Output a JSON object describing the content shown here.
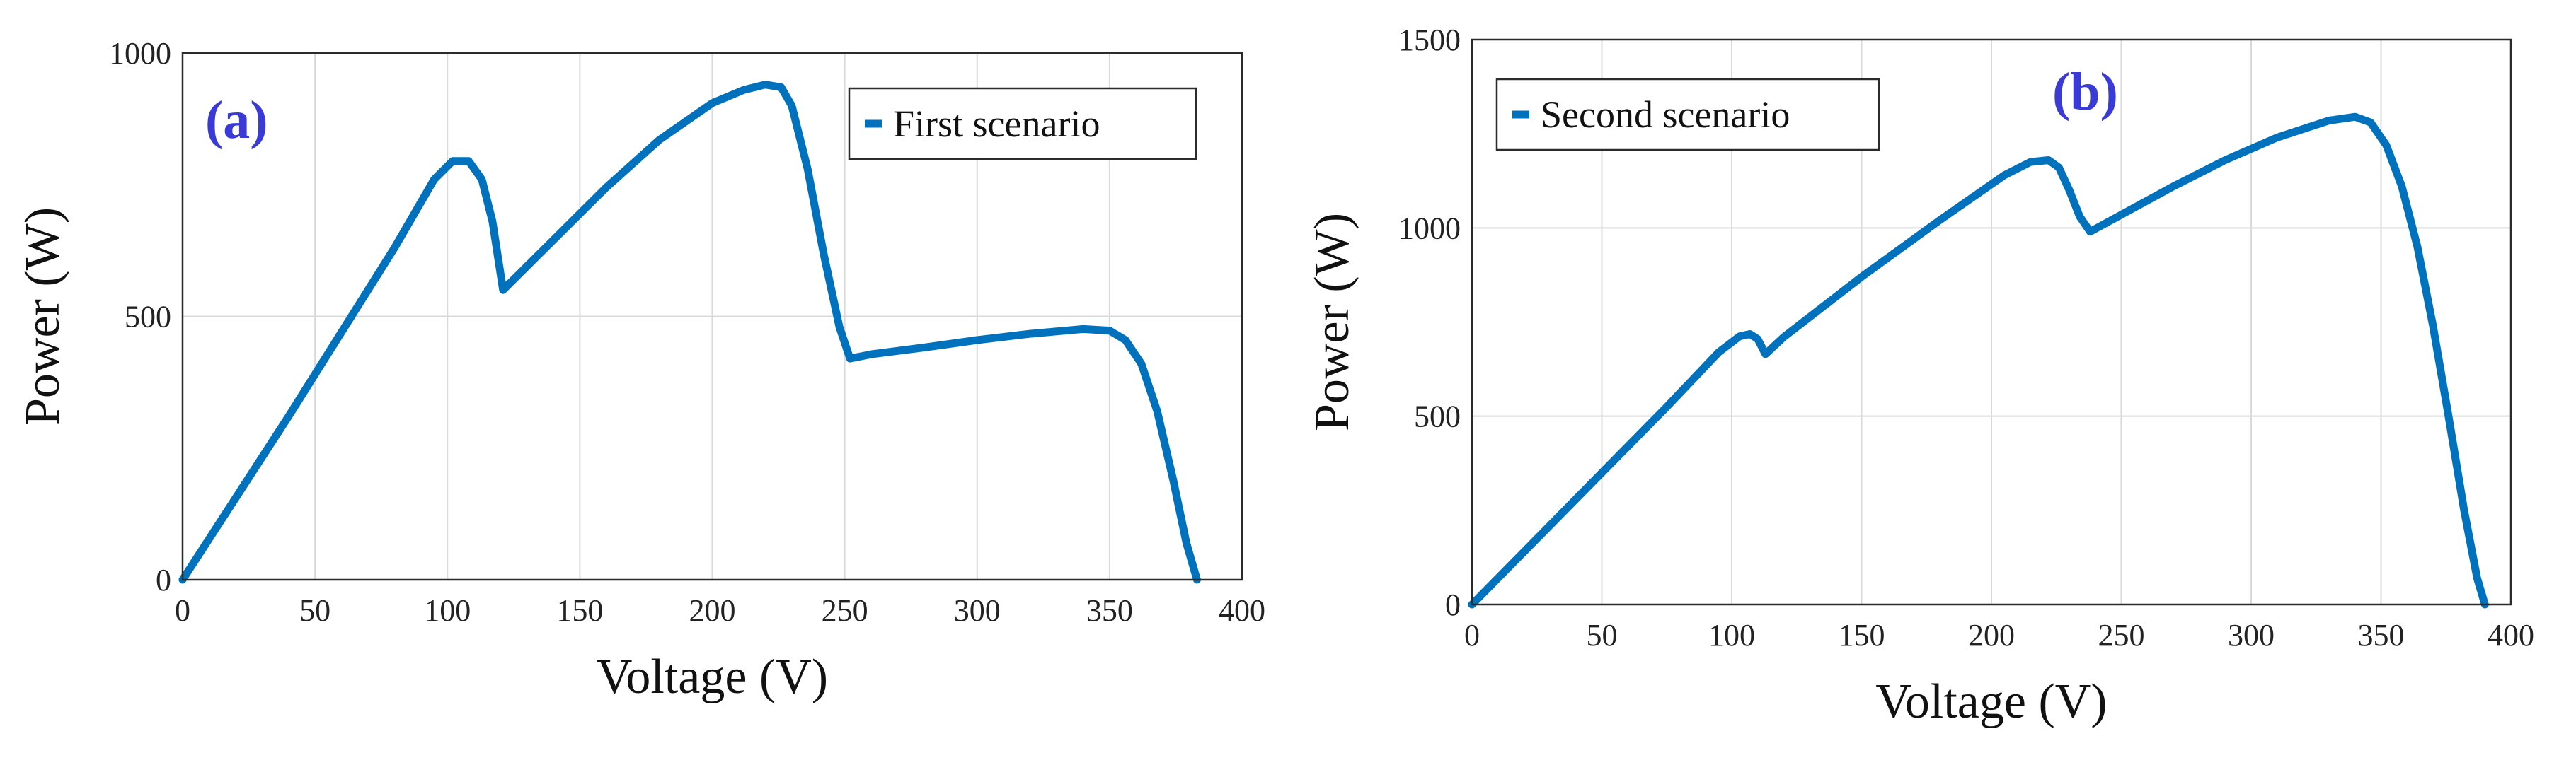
{
  "chart_data": [
    {
      "type": "line",
      "panel_label": "(a)",
      "title": "",
      "xlabel": "Voltage (V)",
      "ylabel": "Power (W)",
      "xlim": [
        0,
        400
      ],
      "ylim": [
        0,
        1000
      ],
      "xticks": [
        0,
        50,
        100,
        150,
        200,
        250,
        300,
        350,
        400
      ],
      "yticks": [
        0,
        500,
        1000
      ],
      "grid": true,
      "legend_position": "top-right",
      "series": [
        {
          "name": "First scenario",
          "color": "#0072BD",
          "x": [
            0,
            20,
            40,
            60,
            80,
            95,
            102,
            108,
            113,
            117,
            121,
            140,
            160,
            180,
            200,
            212,
            220,
            226,
            230,
            236,
            242,
            248,
            252,
            260,
            280,
            300,
            320,
            340,
            350,
            356,
            362,
            368,
            374,
            379,
            383
          ],
          "y": [
            0,
            155,
            310,
            470,
            630,
            760,
            795,
            795,
            760,
            680,
            550,
            645,
            745,
            835,
            905,
            930,
            940,
            935,
            900,
            780,
            620,
            480,
            420,
            428,
            441,
            455,
            467,
            476,
            473,
            455,
            410,
            320,
            190,
            70,
            0
          ]
        }
      ]
    },
    {
      "type": "line",
      "panel_label": "(b)",
      "title": "",
      "xlabel": "Voltage (V)",
      "ylabel": "Power (W)",
      "xlim": [
        0,
        400
      ],
      "ylim": [
        0,
        1500
      ],
      "xticks": [
        0,
        50,
        100,
        150,
        200,
        250,
        300,
        350,
        400
      ],
      "yticks": [
        0,
        500,
        1000,
        1500
      ],
      "grid": true,
      "legend_position": "top-left",
      "series": [
        {
          "name": "Second scenario",
          "color": "#0072BD",
          "x": [
            0,
            25,
            50,
            75,
            95,
            103,
            107,
            110,
            113,
            120,
            150,
            180,
            205,
            215,
            222,
            226,
            230,
            234,
            238,
            250,
            270,
            290,
            310,
            330,
            340,
            346,
            352,
            358,
            364,
            370,
            376,
            382,
            387,
            390
          ],
          "y": [
            0,
            175,
            350,
            525,
            670,
            712,
            718,
            705,
            665,
            710,
            870,
            1020,
            1140,
            1175,
            1180,
            1160,
            1100,
            1030,
            990,
            1035,
            1110,
            1180,
            1240,
            1285,
            1295,
            1280,
            1220,
            1110,
            950,
            740,
            500,
            250,
            70,
            0
          ]
        }
      ]
    }
  ]
}
